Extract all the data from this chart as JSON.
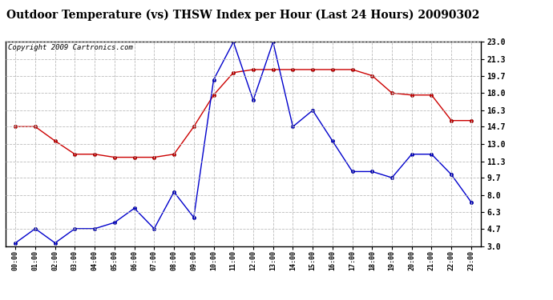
{
  "title": "Outdoor Temperature (vs) THSW Index per Hour (Last 24 Hours) 20090302",
  "copyright": "Copyright 2009 Cartronics.com",
  "hours": [
    "00:00",
    "01:00",
    "02:00",
    "03:00",
    "04:00",
    "05:00",
    "06:00",
    "07:00",
    "08:00",
    "09:00",
    "10:00",
    "11:00",
    "12:00",
    "13:00",
    "14:00",
    "15:00",
    "16:00",
    "17:00",
    "18:00",
    "19:00",
    "20:00",
    "21:00",
    "22:00",
    "23:00"
  ],
  "temp_red": [
    14.7,
    14.7,
    13.3,
    12.0,
    12.0,
    11.7,
    11.7,
    11.7,
    12.0,
    14.7,
    17.8,
    20.0,
    20.3,
    20.3,
    20.3,
    20.3,
    20.3,
    20.3,
    19.7,
    18.0,
    17.8,
    17.8,
    15.3,
    15.3
  ],
  "thsw_blue": [
    3.3,
    4.7,
    3.3,
    4.7,
    4.7,
    5.3,
    6.7,
    4.7,
    8.3,
    5.8,
    19.3,
    23.0,
    17.3,
    23.0,
    14.7,
    16.3,
    13.3,
    10.3,
    10.3,
    9.7,
    12.0,
    12.0,
    10.0,
    7.3
  ],
  "ylim": [
    3.0,
    23.0
  ],
  "yticks": [
    3.0,
    4.7,
    6.3,
    8.0,
    9.7,
    11.3,
    13.0,
    14.7,
    16.3,
    18.0,
    19.7,
    21.3,
    23.0
  ],
  "red_color": "#cc0000",
  "blue_color": "#0000cc",
  "grid_color": "#bbbbbb",
  "bg_color": "#ffffff",
  "title_fontsize": 10,
  "copyright_fontsize": 6.5
}
